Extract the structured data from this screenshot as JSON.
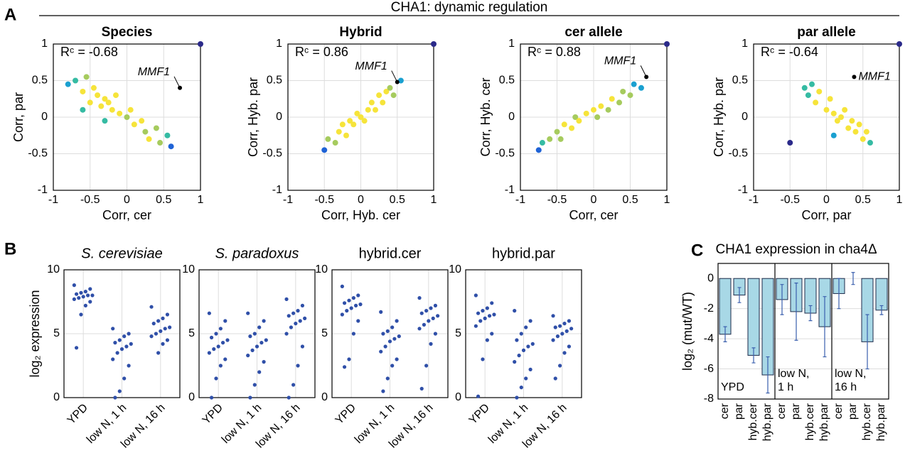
{
  "figure_title": "CHA1: dynamic regulation",
  "panel_labels": [
    "A",
    "B",
    "C"
  ],
  "chart_data": [
    {
      "type": "scatter",
      "title": "Species",
      "annotation": "Rᶜ = -0.68",
      "x_label": "Corr, cer",
      "y_label": "Corr, par",
      "x": [
        -0.8,
        -0.7,
        -0.6,
        -0.55,
        -0.5,
        -0.45,
        -0.4,
        -0.35,
        -0.3,
        -0.25,
        -0.2,
        -0.15,
        -0.1,
        0,
        0.05,
        0.1,
        0.2,
        0.25,
        0.3,
        0.4,
        0.45,
        0.55,
        0.6,
        -0.3,
        -0.6,
        1
      ],
      "y": [
        0.45,
        0.5,
        0.35,
        0.55,
        0.2,
        0.4,
        0.3,
        0.15,
        0.25,
        0.2,
        0.1,
        0.3,
        0.05,
        0,
        0.1,
        -0.1,
        -0.05,
        -0.2,
        -0.3,
        -0.15,
        -0.35,
        -0.25,
        -0.4,
        -0.05,
        0.1,
        1
      ],
      "highlight": {
        "label": "MMF1",
        "x": 0.72,
        "y": 0.4
      },
      "xlim": [
        -1,
        1
      ],
      "ylim": [
        -1,
        1
      ],
      "xticks": [
        -1,
        -0.5,
        0,
        0.5,
        1
      ],
      "yticks": [
        -1,
        -0.5,
        0,
        0.5,
        1
      ],
      "grid": true
    },
    {
      "type": "scatter",
      "title": "Hybrid",
      "annotation": "Rᶜ = 0.86",
      "x_label": "Corr, Hyb. cer",
      "y_label": "Corr, Hyb. par",
      "x": [
        -0.5,
        -0.45,
        -0.35,
        -0.3,
        -0.25,
        -0.2,
        -0.15,
        -0.1,
        -0.05,
        0,
        0.05,
        0.1,
        0.15,
        0.2,
        0.25,
        0.3,
        0.35,
        0.4,
        0.45,
        0.55,
        1
      ],
      "y": [
        -0.45,
        -0.3,
        -0.35,
        -0.2,
        -0.1,
        -0.25,
        -0.05,
        -0.1,
        0.05,
        0,
        -0.05,
        0.1,
        0.2,
        0.1,
        0.3,
        0.2,
        0.35,
        0.4,
        0.3,
        0.5,
        1
      ],
      "highlight": {
        "label": "MMF1",
        "x": 0.5,
        "y": 0.48
      },
      "xlim": [
        -1,
        1
      ],
      "ylim": [
        -1,
        1
      ],
      "xticks": [
        -1,
        -0.5,
        0,
        0.5,
        1
      ],
      "yticks": [
        -1,
        -0.5,
        0,
        0.5,
        1
      ],
      "grid": true
    },
    {
      "type": "scatter",
      "title": "cer allele",
      "annotation": "Rᶜ = 0.88",
      "x_label": "Corr, cer",
      "y_label": "Corr, Hyb. cer",
      "x": [
        -0.75,
        -0.7,
        -0.6,
        -0.5,
        -0.45,
        -0.4,
        -0.3,
        -0.25,
        -0.2,
        -0.1,
        0,
        0.05,
        0.1,
        0.2,
        0.25,
        0.35,
        0.4,
        0.5,
        0.55,
        0.65,
        1
      ],
      "y": [
        -0.45,
        -0.35,
        -0.3,
        -0.2,
        -0.3,
        -0.1,
        -0.15,
        0,
        -0.05,
        0.05,
        0.1,
        0,
        0.15,
        0.1,
        0.25,
        0.2,
        0.35,
        0.3,
        0.45,
        0.4,
        1
      ],
      "highlight": {
        "label": "MMF1",
        "x": 0.72,
        "y": 0.55
      },
      "xlim": [
        -1,
        1
      ],
      "ylim": [
        -1,
        1
      ],
      "xticks": [
        -1,
        -0.5,
        0,
        0.5,
        1
      ],
      "yticks": [
        -1,
        -0.5,
        0,
        0.5,
        1
      ],
      "grid": true
    },
    {
      "type": "scatter",
      "title": "par allele",
      "annotation": "Rᶜ = -0.64",
      "x_label": "Corr, par",
      "y_label": "Corr, Hyb. par",
      "x": [
        -0.5,
        -0.3,
        -0.25,
        -0.2,
        -0.15,
        -0.1,
        0,
        0.05,
        0.1,
        0.15,
        0.2,
        0.25,
        0.3,
        0.35,
        0.4,
        0.45,
        0.5,
        0.55,
        0.6,
        0.1,
        1
      ],
      "y": [
        -0.35,
        0.4,
        0.3,
        0.45,
        0.2,
        0.35,
        0.1,
        0.25,
        0.05,
        -0.05,
        0,
        0.1,
        -0.15,
        -0.05,
        -0.2,
        -0.1,
        -0.3,
        -0.2,
        -0.35,
        -0.25,
        1
      ],
      "highlight": {
        "label": "MMF1",
        "x": 0.38,
        "y": 0.55
      },
      "xlim": [
        -1,
        1
      ],
      "ylim": [
        -1,
        1
      ],
      "xticks": [
        -1,
        -0.5,
        0,
        0.5,
        1
      ],
      "yticks": [
        -1,
        -0.5,
        0,
        0.5,
        1
      ],
      "grid": true
    },
    {
      "type": "swarm",
      "title": "S. cerevisiae",
      "title_italic": true,
      "y_label": "log₂ expression",
      "color": "#2f4fa8",
      "categories": [
        "YPD",
        "low N, 1 h",
        "low N, 16 h"
      ],
      "values": [
        [
          8.8,
          8.5,
          8.3,
          8.2,
          8.1,
          8.0,
          8.0,
          7.9,
          7.8,
          7.7,
          7.5,
          7.2,
          6.5,
          3.9
        ],
        [
          5.4,
          5.0,
          4.8,
          4.5,
          4.3,
          4.2,
          4.0,
          3.8,
          3.5,
          3.0,
          2.5,
          1.5,
          0.5,
          0
        ],
        [
          7.1,
          6.5,
          6.2,
          6.0,
          5.8,
          5.5,
          5.4,
          5.2,
          5.0,
          4.8,
          4.5,
          4.2,
          3.5
        ]
      ],
      "ylim": [
        0,
        10
      ],
      "yticks": [
        0,
        5,
        10
      ],
      "grid": true
    },
    {
      "type": "swarm",
      "title": "S. paradoxus",
      "title_italic": true,
      "color": "#2f4fa8",
      "categories": [
        "YPD",
        "low N, 1 h",
        "low N, 16 h"
      ],
      "values": [
        [
          6.6,
          6.0,
          5.4,
          5.0,
          4.7,
          4.5,
          4.3,
          4.0,
          3.8,
          3.5,
          3.0,
          2.5,
          1.5,
          0
        ],
        [
          6.6,
          6.0,
          5.5,
          5.0,
          4.8,
          4.5,
          4.3,
          4.0,
          3.7,
          3.3,
          2.8,
          2.0,
          1.0,
          0
        ],
        [
          7.7,
          7.2,
          6.8,
          6.6,
          6.4,
          6.2,
          6.0,
          5.8,
          5.5,
          5.0,
          4.0,
          2.5,
          1.0,
          0
        ]
      ],
      "ylim": [
        0,
        10
      ],
      "yticks": [
        0,
        5,
        10
      ],
      "grid": true
    },
    {
      "type": "swarm",
      "title": "hybrid.cer",
      "title_italic": false,
      "color": "#2f4fa8",
      "categories": [
        "YPD",
        "low N, 1 h",
        "low N, 16 h"
      ],
      "values": [
        [
          8.7,
          8.0,
          7.8,
          7.6,
          7.4,
          7.3,
          7.2,
          7.0,
          6.8,
          6.5,
          6.0,
          5.0,
          3.0,
          2.4
        ],
        [
          6.7,
          6.0,
          5.5,
          5.2,
          5.0,
          4.8,
          4.6,
          4.4,
          4.0,
          3.6,
          3.0,
          2.5,
          1.5,
          0.5
        ],
        [
          7.8,
          7.2,
          7.0,
          6.8,
          6.6,
          6.4,
          6.2,
          6.0,
          5.7,
          5.4,
          5.0,
          4.2,
          2.5,
          0.7
        ]
      ],
      "ylim": [
        0,
        10
      ],
      "yticks": [
        0,
        5,
        10
      ],
      "grid": true
    },
    {
      "type": "swarm",
      "title": "hybrid.par",
      "title_italic": false,
      "color": "#2f4fa8",
      "categories": [
        "YPD",
        "low N, 1 h",
        "low N, 16 h"
      ],
      "values": [
        [
          8.0,
          7.4,
          7.0,
          6.8,
          6.6,
          6.5,
          6.4,
          6.2,
          6.0,
          5.6,
          5.0,
          4.5,
          3.0,
          0.1
        ],
        [
          6.8,
          6.0,
          5.5,
          5.0,
          4.5,
          4.2,
          4.0,
          3.7,
          3.3,
          2.8,
          2.2,
          1.5,
          0.8,
          0
        ],
        [
          6.4,
          6.0,
          5.8,
          5.6,
          5.5,
          5.4,
          5.2,
          5.0,
          4.8,
          4.5,
          4.0,
          3.5,
          2.5,
          1.5
        ]
      ],
      "ylim": [
        0,
        10
      ],
      "yticks": [
        0,
        5,
        10
      ],
      "grid": true
    },
    {
      "type": "bar",
      "title": "CHA1 expression in cha4Δ",
      "y_label": "log₂ (mut/WT)",
      "color": "#a8d8e6",
      "error_color": "#3a5fad",
      "group_labels": [
        [
          "YPD"
        ],
        [
          "low N,",
          "1 h"
        ],
        [
          "low N,",
          "16 h"
        ]
      ],
      "categories": [
        "cer",
        "par",
        "hyb.cer",
        "hyb.par",
        "cer",
        "par",
        "hyb.cer",
        "hyb.par",
        "cer",
        "par",
        "hyb.cer",
        "hyb.par"
      ],
      "values": [
        -3.7,
        -1.1,
        -5.1,
        -6.4,
        -1.4,
        -2.2,
        -2.3,
        -3.2,
        -1.0,
        0.0,
        -4.2,
        -2.1
      ],
      "errors": [
        0.5,
        0.5,
        0.5,
        1.2,
        1.0,
        1.9,
        0.5,
        2.0,
        1.0,
        0.4,
        1.8,
        0.3
      ],
      "ylim": [
        -8,
        1
      ],
      "yticks": [
        -8,
        -6,
        -4,
        -2,
        0
      ],
      "grid": true
    }
  ]
}
